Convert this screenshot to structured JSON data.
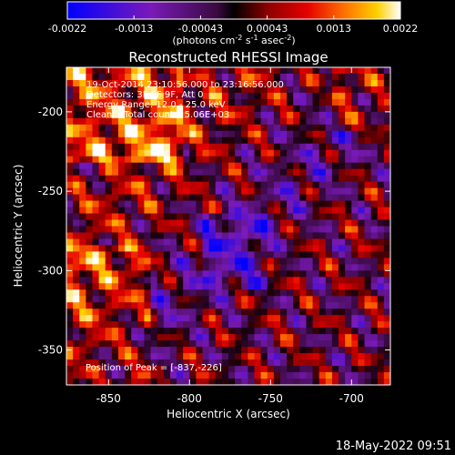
{
  "chart_data": {
    "type": "heatmap",
    "title": "Reconstructed RHESSI Image",
    "xlabel": "Heliocentric X (arcsec)",
    "ylabel": "Heliocentric Y (arcsec)",
    "xlim": [
      -876,
      -676
    ],
    "ylim": [
      -372,
      -172
    ],
    "xticks": [
      -850,
      -800,
      -750,
      -700
    ],
    "xtick_labels": [
      "-850",
      "-800",
      "-750",
      "-700"
    ],
    "yticks": [
      -200,
      -250,
      -300,
      -350
    ],
    "ytick_labels": [
      "-200",
      "-250",
      "-300",
      "-350"
    ],
    "colorbar": {
      "range": [
        -0.0022,
        0.0022
      ],
      "tick_labels": [
        "-0.0022",
        "-0.0013",
        "-0.00043",
        "0.00043",
        "0.0013",
        "0.0022"
      ],
      "unit_label": {
        "base": "(photons cm",
        "sup1": "-2",
        "mid1": " s",
        "sup2": "-1",
        "mid2": " asec",
        "sup3": "-2",
        "tail": ")"
      }
    },
    "annotations": [
      "19-Oct-2014 23:10:56.000 to 23:16:56.000",
      "Detectors: 3F 6F 9F, Att 0",
      "Energy Range: 12.0 - 25.0 keV",
      "Clean    Total counts: 5.06E+03"
    ],
    "peak_label": "Position of Peak = [-837,-226]",
    "grid": false
  },
  "footer": {
    "timestamp": "18-May-2022 09:51"
  }
}
